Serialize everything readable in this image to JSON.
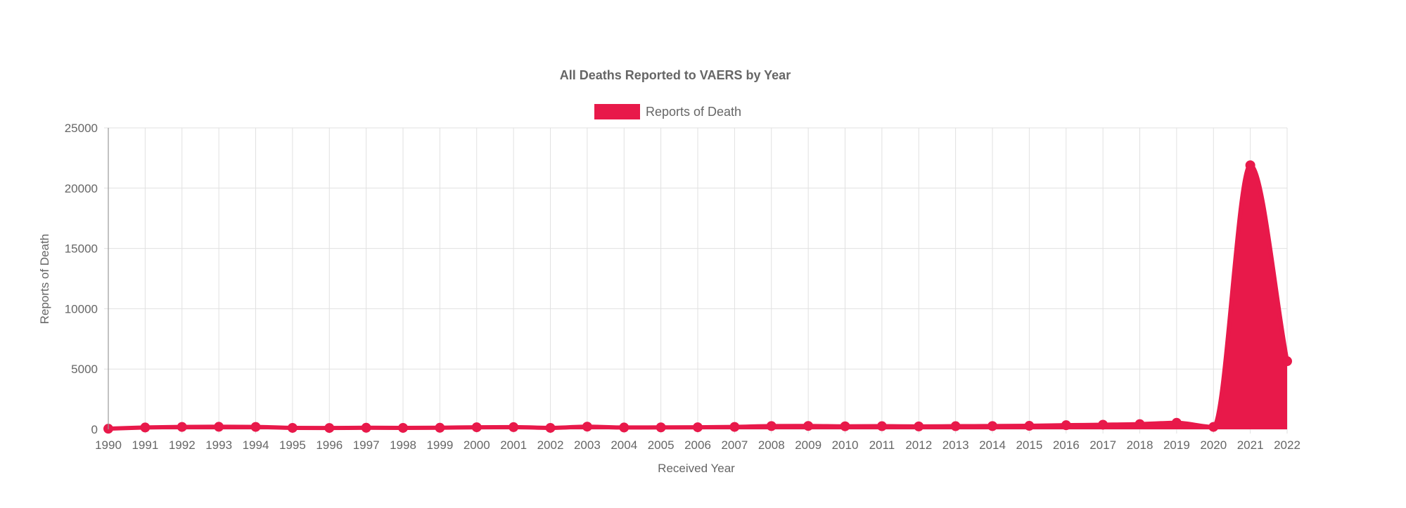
{
  "chart_data": {
    "type": "area",
    "title": "All Deaths Reported to VAERS by Year",
    "xlabel": "Received Year",
    "ylabel": "Reports of Death",
    "x": [
      1990,
      1991,
      1992,
      1993,
      1994,
      1995,
      1996,
      1997,
      1998,
      1999,
      2000,
      2001,
      2002,
      2003,
      2004,
      2005,
      2006,
      2007,
      2008,
      2009,
      2010,
      2011,
      2012,
      2013,
      2014,
      2015,
      2016,
      2017,
      2018,
      2019,
      2020,
      2021,
      2022
    ],
    "x_tick_labels": [
      "1990",
      "1991",
      "1992",
      "1993",
      "1994",
      "1995",
      "1996",
      "1997",
      "1998",
      "1999",
      "2000",
      "2001",
      "2002",
      "2003",
      "2004",
      "2005",
      "2006",
      "2007",
      "2008",
      "2009",
      "2010",
      "2011",
      "2012",
      "2013",
      "2014",
      "2015",
      "2016",
      "2017",
      "2018",
      "2019",
      "2020",
      "2021",
      "2022"
    ],
    "y_tick_labels": [
      "0",
      "5000",
      "10000",
      "15000",
      "20000",
      "25000"
    ],
    "ylim": [
      0,
      25000
    ],
    "series": [
      {
        "name": "Reports of Death",
        "color": "#e8194a",
        "values": [
          50,
          150,
          200,
          210,
          200,
          120,
          110,
          130,
          120,
          130,
          170,
          180,
          120,
          220,
          150,
          160,
          170,
          200,
          270,
          280,
          250,
          260,
          240,
          260,
          270,
          290,
          340,
          380,
          430,
          540,
          200,
          21900,
          5650
        ]
      }
    ],
    "legend": "top-center",
    "grid": true
  }
}
